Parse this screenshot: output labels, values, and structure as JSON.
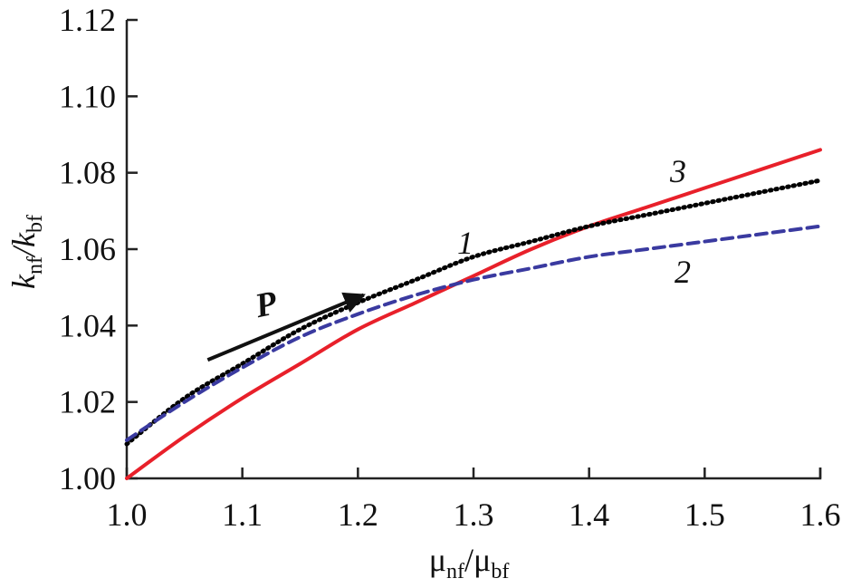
{
  "chart_data": {
    "type": "line",
    "xlabel": {
      "main": "μ",
      "sub_num": "nf",
      "sep": "/μ",
      "sub_den": "bf"
    },
    "ylabel": {
      "main": "k",
      "sub_num": "nf",
      "sep": "/k",
      "sub_den": "bf"
    },
    "xlim": [
      1.0,
      1.6
    ],
    "ylim": [
      1.0,
      1.12
    ],
    "xticks": [
      "1.0",
      "1.1",
      "1.2",
      "1.3",
      "1.4",
      "1.5",
      "1.6"
    ],
    "yticks": [
      "1.00",
      "1.02",
      "1.04",
      "1.06",
      "1.08",
      "1.10",
      "1.12"
    ],
    "grid": false,
    "series": [
      {
        "name": "1",
        "color": "#000000",
        "style": "dotted",
        "x": [
          1.0,
          1.05,
          1.1,
          1.15,
          1.2,
          1.25,
          1.3,
          1.35,
          1.4,
          1.45,
          1.5,
          1.55,
          1.6
        ],
        "y": [
          1.009,
          1.021,
          1.03,
          1.039,
          1.046,
          1.052,
          1.058,
          1.062,
          1.066,
          1.069,
          1.072,
          1.075,
          1.078
        ]
      },
      {
        "name": "2",
        "color": "#3a3aa0",
        "style": "dashed",
        "x": [
          1.0,
          1.05,
          1.1,
          1.15,
          1.2,
          1.25,
          1.3,
          1.35,
          1.4,
          1.45,
          1.5,
          1.55,
          1.6
        ],
        "y": [
          1.01,
          1.02,
          1.029,
          1.037,
          1.043,
          1.048,
          1.052,
          1.055,
          1.058,
          1.06,
          1.062,
          1.064,
          1.066
        ]
      },
      {
        "name": "3",
        "color": "#e8202a",
        "style": "solid",
        "x": [
          1.0,
          1.05,
          1.1,
          1.15,
          1.2,
          1.25,
          1.3,
          1.35,
          1.4,
          1.45,
          1.5,
          1.55,
          1.6
        ],
        "y": [
          1.0,
          1.011,
          1.021,
          1.03,
          1.039,
          1.046,
          1.053,
          1.06,
          1.066,
          1.071,
          1.076,
          1.081,
          1.086
        ]
      }
    ],
    "annotations": [
      {
        "text": "P",
        "kind": "arrow",
        "from": [
          1.07,
          1.031
        ],
        "to": [
          1.205,
          1.048
        ]
      }
    ]
  }
}
